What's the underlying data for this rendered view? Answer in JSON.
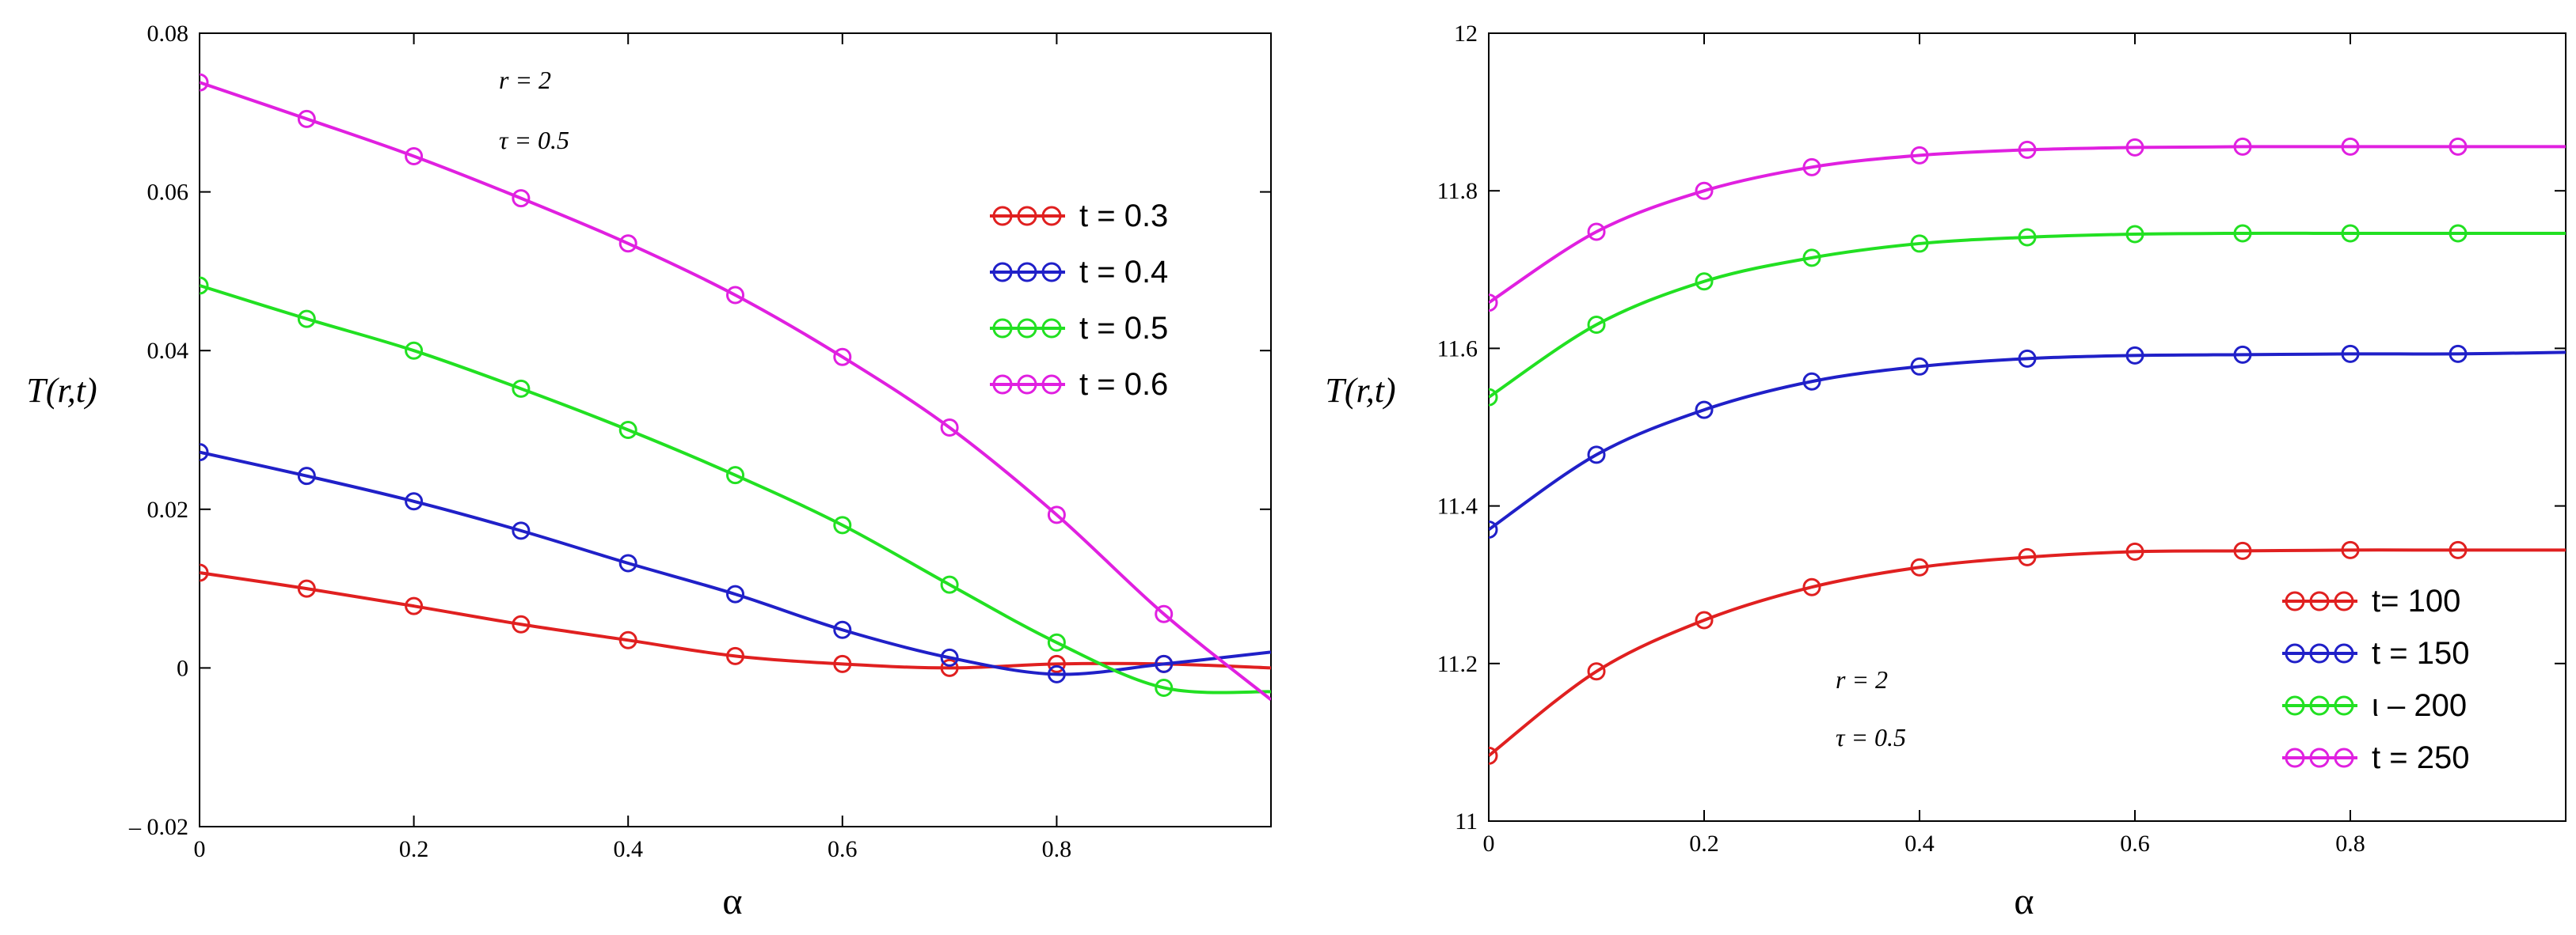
{
  "chart_data": [
    {
      "type": "line",
      "xlabel": "α",
      "ylabel": "T(r,t)",
      "xlim": [
        0,
        1
      ],
      "ylim": [
        -0.02,
        0.08
      ],
      "x_ticks": [
        "0",
        "0.2",
        "0.4",
        "0.6",
        "0.8"
      ],
      "y_ticks": [
        "– 0.02",
        "0",
        "0.02",
        "0.04",
        "0.06",
        "0.08"
      ],
      "annotations": [
        "r = 2",
        "τ = 0.5"
      ],
      "legend_position": "right",
      "x": [
        0,
        0.1,
        0.2,
        0.3,
        0.4,
        0.5,
        0.6,
        0.7,
        0.8,
        0.9,
        1.0
      ],
      "series": [
        {
          "name": "t = 0.3",
          "color": "#e02020",
          "values": [
            0.012,
            0.01,
            0.0078,
            0.0055,
            0.0035,
            0.0015,
            0.0005,
            0.0,
            0.0005,
            0.0005,
            0.0
          ]
        },
        {
          "name": "t = 0.4",
          "color": "#2020c8",
          "values": [
            0.0272,
            0.0242,
            0.021,
            0.0173,
            0.0132,
            0.0093,
            0.0048,
            0.0013,
            -0.0008,
            0.0005,
            0.002
          ]
        },
        {
          "name": "t = 0.5",
          "color": "#22e022",
          "values": [
            0.0482,
            0.044,
            0.04,
            0.0352,
            0.03,
            0.0243,
            0.018,
            0.0105,
            0.0032,
            -0.0025,
            -0.003
          ]
        },
        {
          "name": "t = 0.6",
          "color": "#e020e0",
          "values": [
            0.0738,
            0.0692,
            0.0645,
            0.0592,
            0.0535,
            0.047,
            0.0392,
            0.0303,
            0.0193,
            0.0068,
            -0.004
          ]
        }
      ]
    },
    {
      "type": "line",
      "xlabel": "α",
      "ylabel": "T(r,t)",
      "xlim": [
        0,
        1
      ],
      "ylim": [
        11,
        12
      ],
      "x_ticks": [
        "0",
        "0.2",
        "0.4",
        "0.6",
        "0.8"
      ],
      "y_ticks": [
        "11",
        "11.2",
        "11.4",
        "11.6",
        "11.8",
        "12"
      ],
      "annotations": [
        "r = 2",
        "τ = 0.5"
      ],
      "legend_position": "bottom-right",
      "x": [
        0,
        0.1,
        0.2,
        0.3,
        0.4,
        0.5,
        0.6,
        0.7,
        0.8,
        0.9,
        1.0
      ],
      "series": [
        {
          "name": "t= 100",
          "color": "#e02020",
          "values": [
            11.083,
            11.19,
            11.255,
            11.297,
            11.322,
            11.335,
            11.342,
            11.343,
            11.344,
            11.344,
            11.344
          ]
        },
        {
          "name": "t = 150",
          "color": "#2020c8",
          "values": [
            11.37,
            11.465,
            11.522,
            11.558,
            11.577,
            11.587,
            11.591,
            11.592,
            11.593,
            11.593,
            11.595
          ]
        },
        {
          "name": "ι – 200",
          "color": "#22e022",
          "values": [
            11.538,
            11.63,
            11.685,
            11.715,
            11.733,
            11.741,
            11.745,
            11.746,
            11.746,
            11.746,
            11.746
          ]
        },
        {
          "name": "t = 250",
          "color": "#e020e0",
          "values": [
            11.658,
            11.748,
            11.8,
            11.83,
            11.845,
            11.852,
            11.855,
            11.856,
            11.856,
            11.856,
            11.856
          ]
        }
      ]
    }
  ]
}
